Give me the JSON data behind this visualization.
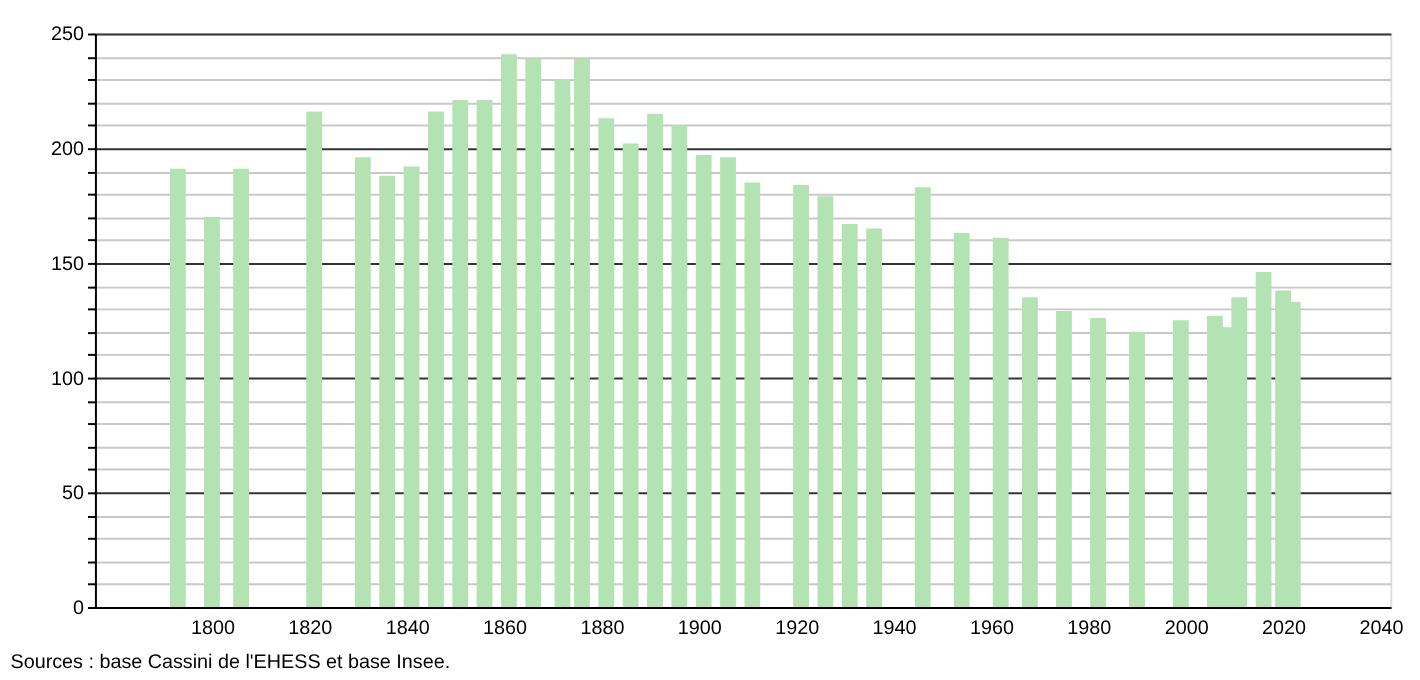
{
  "chart_data": {
    "type": "bar",
    "x": [
      1793,
      1800,
      1806,
      1821,
      1831,
      1836,
      1841,
      1846,
      1851,
      1856,
      1861,
      1866,
      1872,
      1876,
      1881,
      1886,
      1891,
      1896,
      1901,
      1906,
      1911,
      1921,
      1926,
      1931,
      1936,
      1946,
      1954,
      1962,
      1968,
      1975,
      1982,
      1990,
      1999,
      2006,
      2008,
      2011,
      2016,
      2020,
      2022
    ],
    "values": [
      191,
      170,
      191,
      216,
      196,
      188,
      192,
      216,
      221,
      221,
      241,
      239,
      230,
      239,
      213,
      202,
      215,
      210,
      197,
      196,
      185,
      184,
      179,
      167,
      165,
      183,
      163,
      161,
      135,
      129,
      126,
      120,
      125,
      127,
      122,
      135,
      146,
      138,
      133
    ],
    "color": "#b3e3b3",
    "xlim": [
      1778,
      2040
    ],
    "xticks": [
      1800,
      1820,
      1840,
      1860,
      1880,
      1900,
      1920,
      1940,
      1960,
      1980,
      2000,
      2020,
      2040
    ],
    "ylim": [
      0,
      250
    ],
    "yticks": [
      0,
      {
        "value": 10,
        "label": null
      },
      {
        "value": 20,
        "label": null
      },
      {
        "value": 30,
        "label": null
      },
      {
        "value": 40,
        "label": null
      },
      50,
      {
        "value": 60,
        "label": null
      },
      {
        "value": 70,
        "label": null
      },
      {
        "value": 80,
        "label": null
      },
      {
        "value": 90,
        "label": null
      },
      100,
      {
        "value": 110,
        "label": null
      },
      {
        "value": 120,
        "label": null
      },
      {
        "value": 130,
        "label": null
      },
      {
        "value": 140,
        "label": null
      },
      150,
      {
        "value": 160,
        "label": null
      },
      {
        "value": 170,
        "label": null
      },
      {
        "value": 180,
        "label": null
      },
      {
        "value": 190,
        "label": null
      },
      200,
      {
        "value": 210,
        "label": null
      },
      {
        "value": 220,
        "label": null
      },
      {
        "value": 230,
        "label": null
      },
      {
        "value": 240,
        "label": null
      },
      250
    ],
    "grid": "y",
    "annotations": [
      "Sources : base Cassini de l'EHESS et base Insee."
    ]
  }
}
